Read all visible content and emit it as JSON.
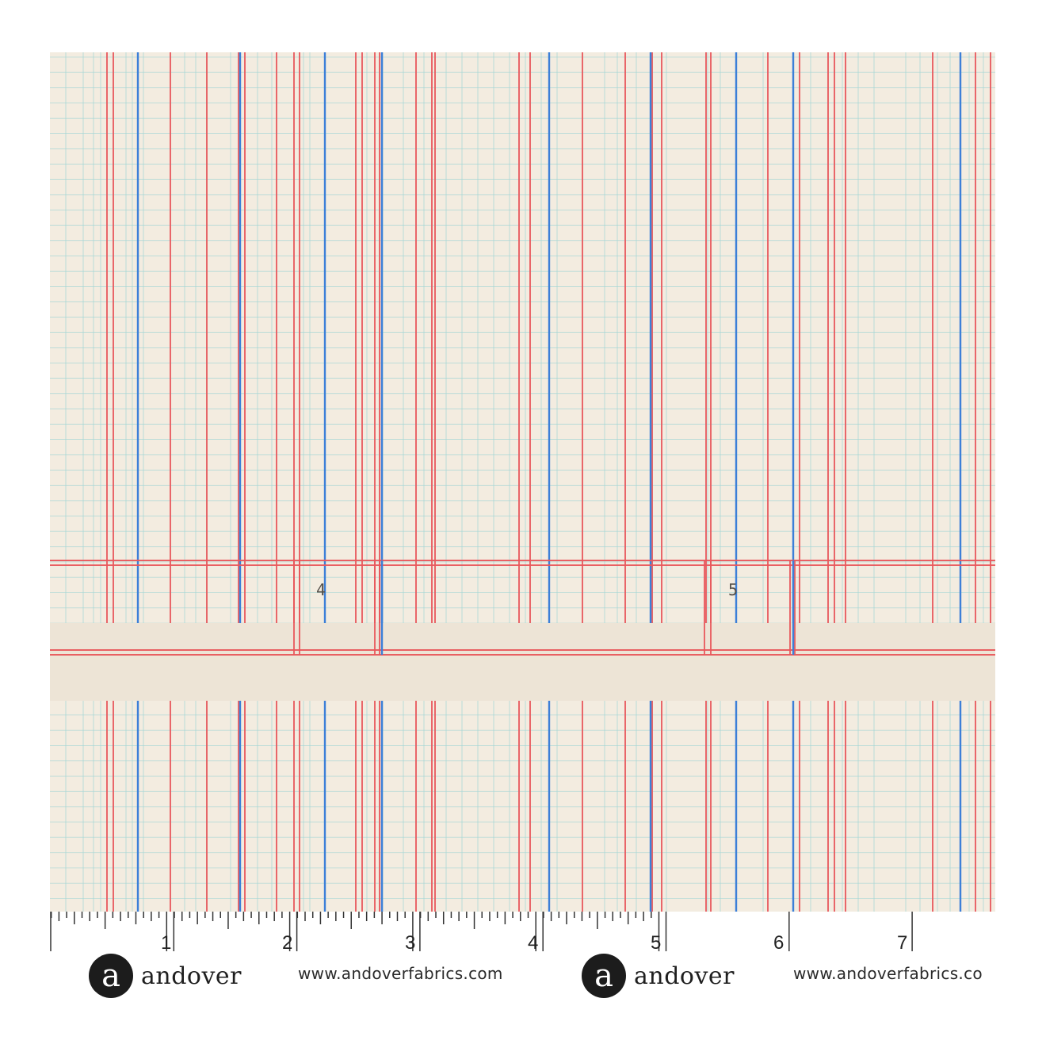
{
  "colors": {
    "background": "#f3ece0",
    "band": "#ede4d6",
    "red_line": "#e8585c",
    "blue_line": "#3c7fd8",
    "aqua_grid": "#9fd6d6"
  },
  "section_numbers": [
    "4",
    "5"
  ],
  "ruler": {
    "labels": [
      "1",
      "2",
      "3",
      "4",
      "5",
      "6",
      "7"
    ]
  },
  "branding": [
    {
      "logo_glyph": "a",
      "logo_icon": "andover-logo-icon",
      "name": "andover",
      "url": "www.andoverfabrics.com"
    },
    {
      "logo_glyph": "a",
      "logo_icon": "andover-logo-icon",
      "name": "andover",
      "url": "www.andoverfabrics.co"
    }
  ]
}
